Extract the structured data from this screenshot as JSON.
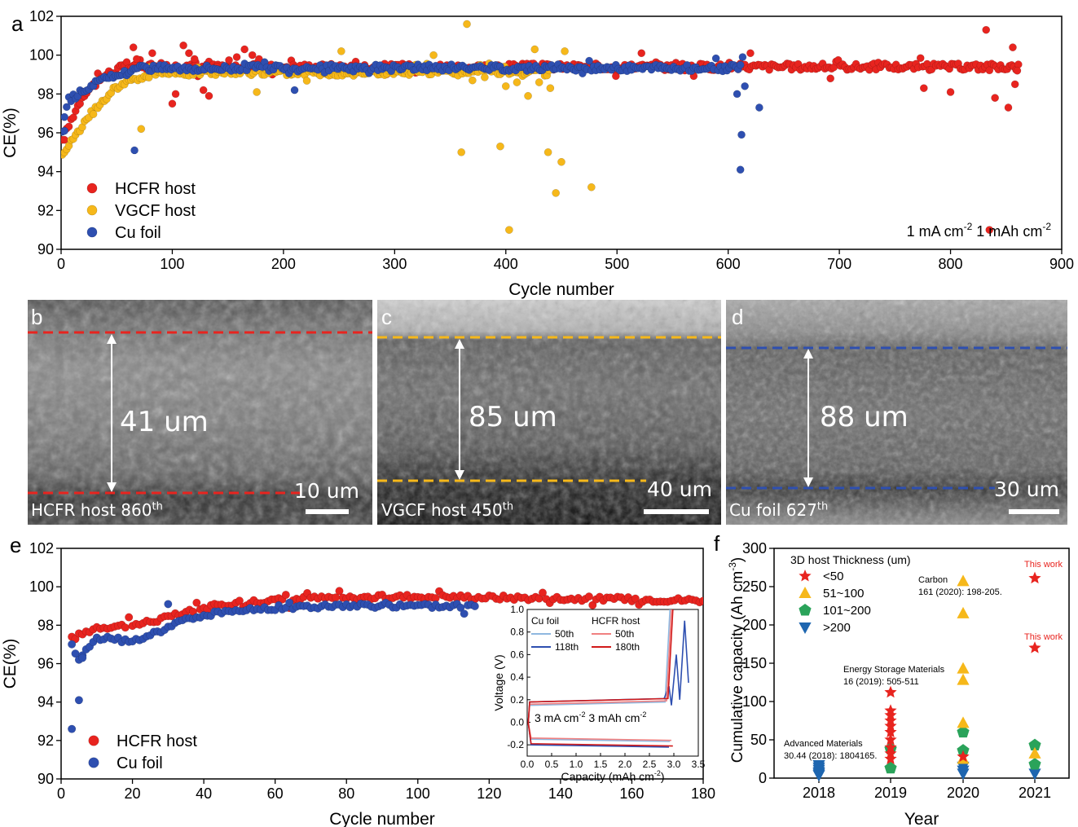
{
  "panels": {
    "a": {
      "letter": "a",
      "xlabel": "Cycle number",
      "ylabel": "CE(%)",
      "condition_prefix": "1 mA cm",
      "condition_exp1": "-2",
      "condition_mid": " 1 mAh cm",
      "condition_exp2": "-2"
    },
    "b": {
      "letter": "b",
      "thickness": "41 um",
      "scale": "10 um",
      "label": "HCFR host 860",
      "label_sup": "th",
      "line_color": "#e8241f"
    },
    "c": {
      "letter": "c",
      "thickness": "85 um",
      "scale": "40 um",
      "label": "VGCF host 450",
      "label_sup": "th",
      "line_color": "#f6b81a"
    },
    "d": {
      "letter": "d",
      "thickness": "88 um",
      "scale": "30 um",
      "label": "Cu foil 627",
      "label_sup": "th",
      "line_color": "#2e4fb0"
    },
    "e": {
      "letter": "e",
      "xlabel": "Cycle number",
      "ylabel": "CE(%)",
      "inset": {
        "xlabel": "Capacity (mAh cm",
        "xlabel_exp": "-2",
        "xlabel_end": ")",
        "ylabel": "Voltage (V)",
        "legend_title_cu": "Cu foil",
        "legend_title_hcfr": "HCFR host",
        "cu_50": "50th",
        "cu_118": "118th",
        "hcfr_50": "50th",
        "hcfr_180": "180th",
        "condition_a": "3 mA cm",
        "condition_exp1": "-2",
        "condition_b": " 3 mAh cm",
        "condition_exp2": "-2"
      }
    },
    "f": {
      "letter": "f",
      "xlabel": "Year",
      "ylabel": "Cumulative capacity (Ah cm",
      "ylabel_exp": "-3",
      "ylabel_end": ")",
      "legend_title": "3D host Thickness (um)",
      "annotations": {
        "this_work_1": "This work",
        "this_work_2": "This work",
        "carbon_1": "Carbon",
        "carbon_2": "161 (2020): 198-205.",
        "esm_1": "Energy Storage Materials",
        "esm_2": "16 (2019): 505-511",
        "am_1": "Advanced Materials",
        "am_2": "30.44 (2018): 1804165."
      }
    }
  },
  "chart_data": [
    {
      "id": "a",
      "type": "scatter",
      "xlabel": "Cycle number",
      "ylabel": "CE(%)",
      "xlim": [
        0,
        900
      ],
      "ylim": [
        90,
        102
      ],
      "xticks": [
        0,
        100,
        200,
        300,
        400,
        500,
        600,
        700,
        800,
        900
      ],
      "yticks": [
        90,
        92,
        94,
        96,
        98,
        100,
        102
      ],
      "legend_position": "bottom-left",
      "series": [
        {
          "name": "HCFR host",
          "color": "#e8241f",
          "baseline": 99.4,
          "n_cycles": 862,
          "ramp": [
            [
              1,
              95.5
            ],
            [
              10,
              96.8
            ],
            [
              20,
              98.0
            ],
            [
              40,
              99.0
            ],
            [
              60,
              99.5
            ]
          ],
          "points": [
            [
              65,
              100.4
            ],
            [
              68,
              99.8
            ],
            [
              82,
              100.1
            ],
            [
              90,
              99.6
            ],
            [
              100,
              97.5
            ],
            [
              103,
              98.0
            ],
            [
              110,
              100.5
            ],
            [
              115,
              100.1
            ],
            [
              120,
              99.8
            ],
            [
              128,
              98.2
            ],
            [
              133,
              97.9
            ],
            [
              140,
              99.4
            ],
            [
              158,
              99.9
            ],
            [
              165,
              100.3
            ],
            [
              172,
              100.0
            ],
            [
              178,
              99.8
            ],
            [
              190,
              99.0
            ],
            [
              522,
              100.1
            ],
            [
              620,
              100.1
            ],
            [
              692,
              98.8
            ],
            [
              776,
              98.3
            ],
            [
              800,
              98.1
            ],
            [
              832,
              101.3
            ],
            [
              835,
              91.0
            ],
            [
              840,
              97.8
            ],
            [
              852,
              97.3
            ],
            [
              856,
              100.4
            ],
            [
              858,
              98.5
            ],
            [
              860,
              99.2
            ]
          ]
        },
        {
          "name": "VGCF host",
          "color": "#f6b81a",
          "baseline": 99.1,
          "n_cycles": 440,
          "ramp": [
            [
              1,
              95.0
            ],
            [
              15,
              96.0
            ],
            [
              30,
              97.2
            ],
            [
              50,
              98.4
            ],
            [
              80,
              99.0
            ]
          ],
          "points": [
            [
              72,
              96.2
            ],
            [
              80,
              99.4
            ],
            [
              176,
              98.1
            ],
            [
              252,
              100.2
            ],
            [
              335,
              100.0
            ],
            [
              360,
              95.0
            ],
            [
              365,
              101.6
            ],
            [
              370,
              98.7
            ],
            [
              395,
              95.3
            ],
            [
              400,
              98.4
            ],
            [
              403,
              91.0
            ],
            [
              410,
              98.6
            ],
            [
              420,
              97.9
            ],
            [
              426,
              100.3
            ],
            [
              430,
              98.6
            ],
            [
              438,
              95.0
            ],
            [
              440,
              98.3
            ],
            [
              445,
              92.9
            ],
            [
              450,
              94.5
            ],
            [
              453,
              100.2
            ],
            [
              477,
              93.2
            ]
          ]
        },
        {
          "name": "Cu foil",
          "color": "#2e4fb0",
          "baseline": 99.35,
          "n_cycles": 612,
          "ramp": [
            [
              1,
              96.1
            ],
            [
              5,
              97.6
            ],
            [
              20,
              98.2
            ],
            [
              40,
              98.8
            ],
            [
              70,
              99.3
            ]
          ],
          "points": [
            [
              3,
              96.1
            ],
            [
              66,
              95.1
            ],
            [
              210,
              98.2
            ],
            [
              608,
              98.0
            ],
            [
              611,
              94.1
            ],
            [
              612,
              95.9
            ],
            [
              613,
              99.9
            ],
            [
              615,
              98.4
            ],
            [
              628,
              97.3
            ]
          ]
        }
      ]
    },
    {
      "id": "e",
      "type": "scatter",
      "xlabel": "Cycle number",
      "ylabel": "CE(%)",
      "xlim": [
        0,
        180
      ],
      "ylim": [
        90,
        102
      ],
      "xticks": [
        0,
        20,
        40,
        60,
        80,
        100,
        120,
        140,
        160,
        180
      ],
      "yticks": [
        90,
        92,
        94,
        96,
        98,
        100,
        102
      ],
      "legend_position": "bottom-left",
      "series": [
        {
          "name": "HCFR host",
          "color": "#e8241f",
          "n_cycles": 180,
          "start": 3,
          "ramp": [
            [
              3,
              97.3
            ],
            [
              10,
              97.9
            ],
            [
              20,
              98.0
            ],
            [
              30,
              98.4
            ],
            [
              40,
              98.9
            ],
            [
              50,
              99.2
            ],
            [
              70,
              99.4
            ],
            [
              100,
              99.5
            ],
            [
              140,
              99.4
            ],
            [
              180,
              99.3
            ]
          ]
        },
        {
          "name": "Cu foil",
          "color": "#2e4fb0",
          "n_cycles": 116,
          "start": 3,
          "ramp": [
            [
              3,
              97.1
            ],
            [
              5,
              96.3
            ],
            [
              10,
              97.3
            ],
            [
              20,
              97.2
            ],
            [
              25,
              97.5
            ],
            [
              35,
              98.3
            ],
            [
              45,
              98.7
            ],
            [
              60,
              98.9
            ],
            [
              80,
              99.0
            ],
            [
              100,
              99.0
            ],
            [
              116,
              99.0
            ]
          ],
          "points": [
            [
              3,
              92.6
            ],
            [
              5,
              94.1
            ],
            [
              6,
              96.3
            ],
            [
              30,
              99.1
            ]
          ]
        }
      ],
      "inset": {
        "type": "line",
        "xlabel": "Capacity (mAh cm-2)",
        "ylabel": "Voltage (V)",
        "xlim": [
          0.0,
          3.5
        ],
        "ylim": [
          -0.3,
          1.0
        ],
        "xticks": [
          "0.0",
          "0.5",
          "1.0",
          "1.5",
          "2.0",
          "2.5",
          "3.0",
          "3.5"
        ],
        "yticks": [
          "-0.2",
          "0.0",
          "0.2",
          "0.4",
          "0.6",
          "0.8",
          "1.0"
        ],
        "legend_position": "top-left",
        "series": [
          {
            "name": "Cu foil 50th",
            "color": "#8fb8e0"
          },
          {
            "name": "Cu foil 118th",
            "color": "#2e4fb0"
          },
          {
            "name": "HCFR host 50th",
            "color": "#f08080"
          },
          {
            "name": "HCFR host 180th",
            "color": "#d11a1a"
          }
        ]
      }
    },
    {
      "id": "f",
      "type": "scatter",
      "xlabel": "Year",
      "ylabel": "Cumulative capacity (Ah cm-3)",
      "categories": [
        "2018",
        "2019",
        "2020",
        "2021"
      ],
      "ylim": [
        0,
        300
      ],
      "yticks": [
        0,
        50,
        100,
        150,
        200,
        250,
        300
      ],
      "legend_title": "3D host Thickness (um)",
      "legend_position": "top-left",
      "series": [
        {
          "name": "<50",
          "marker": "star",
          "color": "#e8241f",
          "points": [
            [
              "2019",
              112
            ],
            [
              "2019",
              88
            ],
            [
              "2019",
              82
            ],
            [
              "2019",
              75
            ],
            [
              "2019",
              68
            ],
            [
              "2019",
              60
            ],
            [
              "2019",
              50
            ],
            [
              "2019",
              40
            ],
            [
              "2019",
              32
            ],
            [
              "2019",
              25
            ],
            [
              "2020",
              28
            ],
            [
              "2021",
              261
            ],
            [
              "2021",
              170
            ]
          ]
        },
        {
          "name": "51~100",
          "marker": "triangle-up",
          "color": "#f6b81a",
          "points": [
            [
              "2020",
              257
            ],
            [
              "2020",
              215
            ],
            [
              "2020",
              143
            ],
            [
              "2020",
              128
            ],
            [
              "2020",
              72
            ],
            [
              "2020",
              25
            ],
            [
              "2021",
              32
            ]
          ]
        },
        {
          "name": "101~200",
          "marker": "pentagon",
          "color": "#2aa35a",
          "points": [
            [
              "2019",
              38
            ],
            [
              "2019",
              13
            ],
            [
              "2020",
              60
            ],
            [
              "2020",
              36
            ],
            [
              "2021",
              43
            ],
            [
              "2021",
              18
            ]
          ]
        },
        {
          "name": ">200",
          "marker": "triangle-down",
          "color": "#1e66b0",
          "points": [
            [
              "2018",
              17
            ],
            [
              "2018",
              14
            ],
            [
              "2018",
              11
            ],
            [
              "2018",
              8
            ],
            [
              "2018",
              6
            ],
            [
              "2018",
              4
            ],
            [
              "2020",
              15
            ],
            [
              "2020",
              10
            ],
            [
              "2020",
              6
            ],
            [
              "2021",
              6
            ]
          ]
        }
      ]
    }
  ]
}
